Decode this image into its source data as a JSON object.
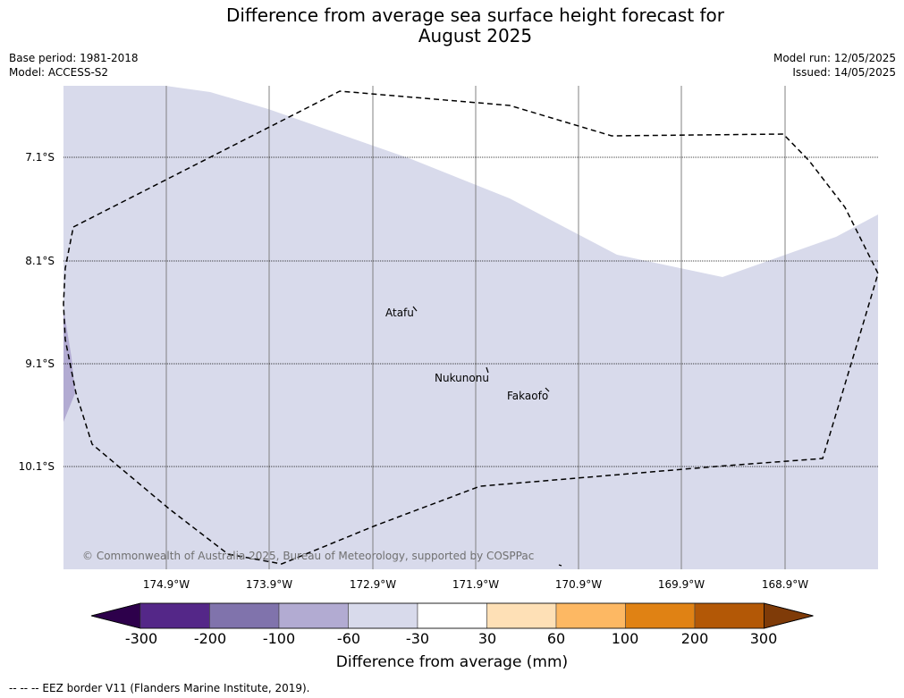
{
  "title_line1": "Difference from average sea surface height forecast for",
  "title_line2": "August 2025",
  "meta_left": {
    "base_period": "Base period: 1981-2018",
    "model": "Model: ACCESS-S2"
  },
  "meta_right": {
    "model_run": "Model run: 12/05/2025",
    "issued": "Issued: 14/05/2025"
  },
  "latitudes": [
    "7.1°S",
    "8.1°S",
    "9.1°S",
    "10.1°S"
  ],
  "longitudes": [
    "174.9°W",
    "173.9°W",
    "172.9°W",
    "171.9°W",
    "170.9°W",
    "169.9°W",
    "168.9°W"
  ],
  "places": [
    {
      "name": "Atafu"
    },
    {
      "name": "Nukunonu"
    },
    {
      "name": "Fakaofo"
    }
  ],
  "copyright": "© Commonwealth of Australia 2025, Bureau of Meteorology, supported by COSPPac",
  "colorbar": {
    "ticks": [
      "-300",
      "-200",
      "-100",
      "-60",
      "-30",
      "30",
      "60",
      "100",
      "200",
      "300"
    ],
    "colors": [
      "#2d004b",
      "#542788",
      "#8073ac",
      "#b2abd2",
      "#d8daeb",
      "#ffffff",
      "#fee0b6",
      "#fdb863",
      "#e08214",
      "#b35806",
      "#7f3b08"
    ],
    "title": "Difference from average (mm)"
  },
  "legend_note": "-- -- -- EEZ border V11 (Flanders Marine Institute, 2019)."
}
